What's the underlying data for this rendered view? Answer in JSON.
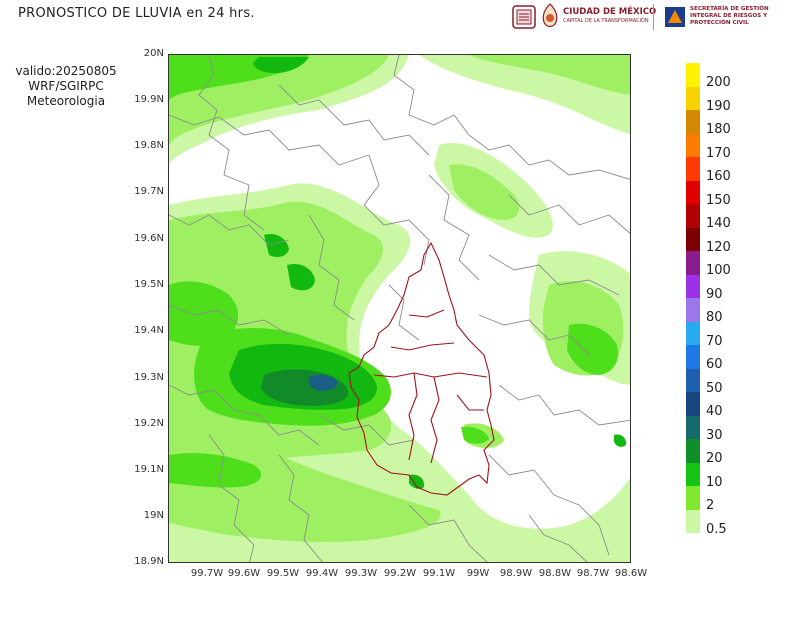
{
  "header": {
    "title": "PRONOSTICO DE LLUVIA en 24 hrs.",
    "valid_line": "valido:20250805",
    "model_line": "WRF/SGIRPC",
    "dept_line": "Meteorologia"
  },
  "logos": {
    "cdmx_name": "CIUDAD DE MÉXICO",
    "cdmx_tagline": "CAPITAL DE LA TRANSFORMACIÓN",
    "sgirpc_name": "SECRETARÍA DE GESTIÓN INTEGRAL DE RIESGOS Y PROTECCIÓN CIVIL"
  },
  "map": {
    "lat_labels": [
      "20N",
      "19.9N",
      "19.8N",
      "19.7N",
      "19.6N",
      "19.5N",
      "19.4N",
      "19.3N",
      "19.2N",
      "19.1N",
      "19N",
      "18.9N"
    ],
    "lon_labels": [
      "99.7W",
      "99.6W",
      "99.5W",
      "99.4W",
      "99.3W",
      "99.2W",
      "99.1W",
      "99W",
      "98.9W",
      "98.8W",
      "98.7W",
      "98.6W"
    ],
    "colors": {
      "c0_5": "#ccf8a6",
      "c2": "#9ef062",
      "c10": "#4fde1c",
      "c20": "#12b80f",
      "c30": "#138a2a",
      "c40": "#1b5e85",
      "cdmx_border": "#a01218",
      "municipal_border": "#8c8c8c"
    }
  },
  "colorbar": {
    "labels": [
      "200",
      "190",
      "180",
      "170",
      "160",
      "150",
      "140",
      "120",
      "100",
      "90",
      "80",
      "70",
      "60",
      "50",
      "40",
      "30",
      "20",
      "10",
      "2",
      "0.5"
    ],
    "colors": [
      "#fff200",
      "#f6d300",
      "#d38a00",
      "#ff7a00",
      "#ff3a00",
      "#e00000",
      "#b30000",
      "#7d0000",
      "#8a1b8a",
      "#9b32ea",
      "#9a78ea",
      "#29aaee",
      "#1e78e6",
      "#1f5fb0",
      "#17457e",
      "#156b6b",
      "#118d2a",
      "#16c416",
      "#7fe82d",
      "#ccf8a6"
    ]
  }
}
